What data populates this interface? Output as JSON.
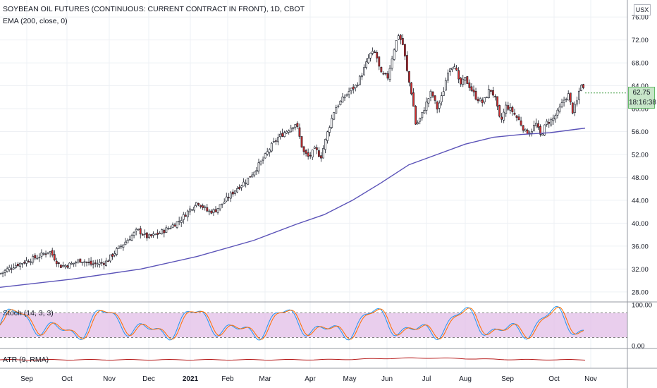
{
  "legend": {
    "title": "SOYBEAN OIL FUTURES (CONTINUOUS: CURRENT CONTRACT IN FRONT), 1D, CBOT",
    "ema": "EMA (200, close, 0)",
    "stoch": "Stoch (14, 3, 3)",
    "atr": "ATR (9, RMA)"
  },
  "price_axis": {
    "currency": "USX",
    "current_price": "62.75",
    "countdown": "18:16:38"
  },
  "chart_data": [
    {
      "type": "candlestick",
      "title": "SOYBEAN OIL FUTURES (CONTINUOUS: CURRENT CONTRACT IN FRONT), 1D, CBOT",
      "ylim": [
        26.5,
        77
      ],
      "y_ticks": [
        "76.00",
        "72.00",
        "68.00",
        "64.00",
        "60.00",
        "56.00",
        "52.00",
        "48.00",
        "44.00",
        "40.00",
        "36.00",
        "32.00",
        "28.00"
      ],
      "x_ticks": [
        "Sep",
        "Oct",
        "Nov",
        "Dec",
        "2021",
        "Feb",
        "Mar",
        "Apr",
        "May",
        "Jun",
        "Jul",
        "Aug",
        "Sep",
        "Oct",
        "Nov"
      ],
      "grid": true,
      "close_path": [
        {
          "x": 0,
          "y": 31.2
        },
        {
          "x": 20,
          "y": 32.6
        },
        {
          "x": 40,
          "y": 33.5
        },
        {
          "x": 55,
          "y": 34.2
        },
        {
          "x": 70,
          "y": 35.2
        },
        {
          "x": 85,
          "y": 32.5
        },
        {
          "x": 100,
          "y": 32.8
        },
        {
          "x": 115,
          "y": 33.6
        },
        {
          "x": 130,
          "y": 32.8
        },
        {
          "x": 150,
          "y": 33.2
        },
        {
          "x": 165,
          "y": 35.2
        },
        {
          "x": 180,
          "y": 37.0
        },
        {
          "x": 195,
          "y": 38.8
        },
        {
          "x": 210,
          "y": 37.5
        },
        {
          "x": 225,
          "y": 38.2
        },
        {
          "x": 240,
          "y": 39.2
        },
        {
          "x": 255,
          "y": 40.5
        },
        {
          "x": 270,
          "y": 42.5
        },
        {
          "x": 280,
          "y": 43.8
        },
        {
          "x": 295,
          "y": 42.0
        },
        {
          "x": 305,
          "y": 42.2
        },
        {
          "x": 320,
          "y": 44.0
        },
        {
          "x": 335,
          "y": 46.0
        },
        {
          "x": 350,
          "y": 47.5
        },
        {
          "x": 360,
          "y": 49.0
        },
        {
          "x": 375,
          "y": 51.5
        },
        {
          "x": 385,
          "y": 53.5
        },
        {
          "x": 395,
          "y": 55.0
        },
        {
          "x": 410,
          "y": 56.5
        },
        {
          "x": 420,
          "y": 57.5
        },
        {
          "x": 430,
          "y": 52.5
        },
        {
          "x": 438,
          "y": 51.5
        },
        {
          "x": 447,
          "y": 53.0
        },
        {
          "x": 455,
          "y": 51.5
        },
        {
          "x": 465,
          "y": 56.0
        },
        {
          "x": 475,
          "y": 60.0
        },
        {
          "x": 485,
          "y": 61.5
        },
        {
          "x": 495,
          "y": 63.0
        },
        {
          "x": 505,
          "y": 64.0
        },
        {
          "x": 515,
          "y": 66.5
        },
        {
          "x": 525,
          "y": 69.5
        },
        {
          "x": 533,
          "y": 69.8
        },
        {
          "x": 540,
          "y": 66.0
        },
        {
          "x": 550,
          "y": 65.5
        },
        {
          "x": 558,
          "y": 70.0
        },
        {
          "x": 565,
          "y": 73.0
        },
        {
          "x": 572,
          "y": 71.0
        },
        {
          "x": 578,
          "y": 66.0
        },
        {
          "x": 585,
          "y": 62.0
        },
        {
          "x": 590,
          "y": 57.0
        },
        {
          "x": 597,
          "y": 58.5
        },
        {
          "x": 605,
          "y": 61.0
        },
        {
          "x": 612,
          "y": 63.0
        },
        {
          "x": 620,
          "y": 60.0
        },
        {
          "x": 628,
          "y": 62.5
        },
        {
          "x": 636,
          "y": 67.0
        },
        {
          "x": 645,
          "y": 67.8
        },
        {
          "x": 652,
          "y": 64.0
        },
        {
          "x": 660,
          "y": 65.2
        },
        {
          "x": 668,
          "y": 63.5
        },
        {
          "x": 675,
          "y": 62.0
        },
        {
          "x": 685,
          "y": 61.0
        },
        {
          "x": 695,
          "y": 63.5
        },
        {
          "x": 702,
          "y": 62.0
        },
        {
          "x": 710,
          "y": 57.5
        },
        {
          "x": 718,
          "y": 60.5
        },
        {
          "x": 727,
          "y": 59.5
        },
        {
          "x": 737,
          "y": 57.8
        },
        {
          "x": 745,
          "y": 56.0
        },
        {
          "x": 752,
          "y": 55.8
        },
        {
          "x": 760,
          "y": 57.5
        },
        {
          "x": 767,
          "y": 55.2
        },
        {
          "x": 775,
          "y": 57.5
        },
        {
          "x": 783,
          "y": 58.0
        },
        {
          "x": 792,
          "y": 59.5
        },
        {
          "x": 800,
          "y": 61.5
        },
        {
          "x": 806,
          "y": 62.5
        },
        {
          "x": 812,
          "y": 59.5
        },
        {
          "x": 818,
          "y": 61.0
        },
        {
          "x": 824,
          "y": 64.5
        },
        {
          "x": 830,
          "y": 62.75
        }
      ]
    },
    {
      "type": "line",
      "name": "EMA (200, close, 0)",
      "color": "#5b53b8",
      "points": [
        {
          "x": 0,
          "y": 28.8
        },
        {
          "x": 100,
          "y": 30.2
        },
        {
          "x": 200,
          "y": 32.0
        },
        {
          "x": 280,
          "y": 34.2
        },
        {
          "x": 360,
          "y": 37.0
        },
        {
          "x": 420,
          "y": 39.8
        },
        {
          "x": 460,
          "y": 41.5
        },
        {
          "x": 500,
          "y": 44.0
        },
        {
          "x": 540,
          "y": 47.0
        },
        {
          "x": 580,
          "y": 50.2
        },
        {
          "x": 620,
          "y": 52.0
        },
        {
          "x": 660,
          "y": 53.8
        },
        {
          "x": 700,
          "y": 55.0
        },
        {
          "x": 740,
          "y": 55.5
        },
        {
          "x": 780,
          "y": 55.8
        },
        {
          "x": 830,
          "y": 56.6
        }
      ]
    },
    {
      "type": "line",
      "name": "Stoch (14, 3, 3)",
      "ylim": [
        0,
        100
      ],
      "y_ticks": [
        "100.00",
        "0.00"
      ],
      "bands": [
        80,
        20
      ],
      "colors": [
        "#2196f3",
        "#ff6d00"
      ]
    },
    {
      "type": "line",
      "name": "ATR (9, RMA)",
      "color": "#b71c1c"
    }
  ]
}
